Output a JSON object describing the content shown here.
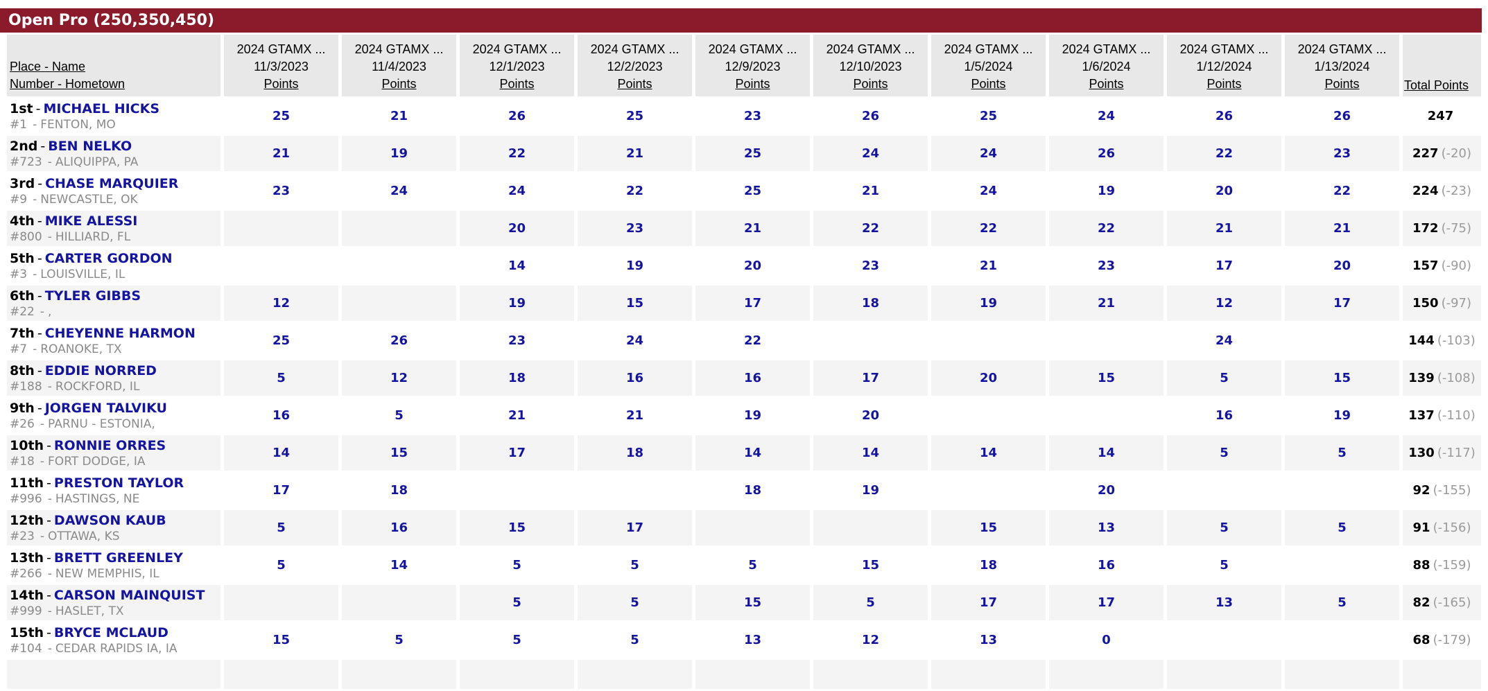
{
  "title_bar": {
    "label": "Open Pro (250,350,450)"
  },
  "colors": {
    "title_bar_bg": "#8b1b2b",
    "title_text": "#ffffff",
    "link_navy": "#1414a0",
    "muted_gray": "#8a8a8a",
    "deficit_gray": "#9a9a9a",
    "row_stripe": "#f4f4f4",
    "header_cell_bg": "#e8e8e8"
  },
  "table": {
    "row_header": {
      "line1": "Place - Name",
      "line2": "Number - Hometown"
    },
    "separator": "-",
    "points_label": "Points",
    "total_label": "Total Points",
    "event_columns": [
      {
        "series": "2024 GTAMX ...",
        "date": "11/3/2023"
      },
      {
        "series": "2024 GTAMX ...",
        "date": "11/4/2023"
      },
      {
        "series": "2024 GTAMX ...",
        "date": "12/1/2023"
      },
      {
        "series": "2024 GTAMX ...",
        "date": "12/2/2023"
      },
      {
        "series": "2024 GTAMX ...",
        "date": "12/9/2023"
      },
      {
        "series": "2024 GTAMX ...",
        "date": "12/10/2023"
      },
      {
        "series": "2024 GTAMX ...",
        "date": "1/5/2024"
      },
      {
        "series": "2024 GTAMX ...",
        "date": "1/6/2024"
      },
      {
        "series": "2024 GTAMX ...",
        "date": "1/12/2024"
      },
      {
        "series": "2024 GTAMX ...",
        "date": "1/13/2024"
      }
    ],
    "rows": [
      {
        "place": "1st",
        "name": "MICHAEL HICKS",
        "number": "#1",
        "hometown": "FENTON, MO",
        "points": [
          "25",
          "21",
          "26",
          "25",
          "23",
          "26",
          "25",
          "24",
          "26",
          "26"
        ],
        "total": "247",
        "deficit": ""
      },
      {
        "place": "2nd",
        "name": "BEN NELKO",
        "number": "#723",
        "hometown": "ALIQUIPPA, PA",
        "points": [
          "21",
          "19",
          "22",
          "21",
          "25",
          "24",
          "24",
          "26",
          "22",
          "23"
        ],
        "total": "227",
        "deficit": "(-20)"
      },
      {
        "place": "3rd",
        "name": "CHASE MARQUIER",
        "number": "#9",
        "hometown": "NEWCASTLE, OK",
        "points": [
          "23",
          "24",
          "24",
          "22",
          "25",
          "21",
          "24",
          "19",
          "20",
          "22"
        ],
        "total": "224",
        "deficit": "(-23)"
      },
      {
        "place": "4th",
        "name": "MIKE ALESSI",
        "number": "#800",
        "hometown": "HILLIARD, FL",
        "points": [
          "",
          "",
          "20",
          "23",
          "21",
          "22",
          "22",
          "22",
          "21",
          "21"
        ],
        "total": "172",
        "deficit": "(-75)"
      },
      {
        "place": "5th",
        "name": "CARTER GORDON",
        "number": "#3",
        "hometown": "LOUISVILLE, IL",
        "points": [
          "",
          "",
          "14",
          "19",
          "20",
          "23",
          "21",
          "23",
          "17",
          "20"
        ],
        "total": "157",
        "deficit": "(-90)"
      },
      {
        "place": "6th",
        "name": "TYLER GIBBS",
        "number": "#22",
        "hometown": ",",
        "points": [
          "12",
          "",
          "19",
          "15",
          "17",
          "18",
          "19",
          "21",
          "12",
          "17"
        ],
        "total": "150",
        "deficit": "(-97)"
      },
      {
        "place": "7th",
        "name": "CHEYENNE HARMON",
        "number": "#7",
        "hometown": "ROANOKE, TX",
        "points": [
          "25",
          "26",
          "23",
          "24",
          "22",
          "",
          "",
          "",
          "24",
          ""
        ],
        "total": "144",
        "deficit": "(-103)"
      },
      {
        "place": "8th",
        "name": "EDDIE NORRED",
        "number": "#188",
        "hometown": "ROCKFORD, IL",
        "points": [
          "5",
          "12",
          "18",
          "16",
          "16",
          "17",
          "20",
          "15",
          "5",
          "15"
        ],
        "total": "139",
        "deficit": "(-108)"
      },
      {
        "place": "9th",
        "name": "JORGEN TALVIKU",
        "number": "#26",
        "hometown": "PARNU - ESTONIA,",
        "points": [
          "16",
          "5",
          "21",
          "21",
          "19",
          "20",
          "",
          "",
          "16",
          "19"
        ],
        "total": "137",
        "deficit": "(-110)"
      },
      {
        "place": "10th",
        "name": "RONNIE ORRES",
        "number": "#18",
        "hometown": "FORT DODGE, IA",
        "points": [
          "14",
          "15",
          "17",
          "18",
          "14",
          "14",
          "14",
          "14",
          "5",
          "5"
        ],
        "total": "130",
        "deficit": "(-117)"
      },
      {
        "place": "11th",
        "name": "PRESTON TAYLOR",
        "number": "#996",
        "hometown": "HASTINGS, NE",
        "points": [
          "17",
          "18",
          "",
          "",
          "18",
          "19",
          "",
          "20",
          "",
          ""
        ],
        "total": "92",
        "deficit": "(-155)"
      },
      {
        "place": "12th",
        "name": "DAWSON KAUB",
        "number": "#23",
        "hometown": "OTTAWA, KS",
        "points": [
          "5",
          "16",
          "15",
          "17",
          "",
          "",
          "15",
          "13",
          "5",
          "5"
        ],
        "total": "91",
        "deficit": "(-156)"
      },
      {
        "place": "13th",
        "name": "BRETT GREENLEY",
        "number": "#266",
        "hometown": "NEW MEMPHIS, IL",
        "points": [
          "5",
          "14",
          "5",
          "5",
          "5",
          "15",
          "18",
          "16",
          "5",
          ""
        ],
        "total": "88",
        "deficit": "(-159)"
      },
      {
        "place": "14th",
        "name": "CARSON MAINQUIST",
        "number": "#999",
        "hometown": "HASLET, TX",
        "points": [
          "",
          "",
          "5",
          "5",
          "15",
          "5",
          "17",
          "17",
          "13",
          "5"
        ],
        "total": "82",
        "deficit": "(-165)"
      },
      {
        "place": "15th",
        "name": "BRYCE MCLAUD",
        "number": "#104",
        "hometown": "CEDAR RAPIDS IA, IA",
        "points": [
          "15",
          "5",
          "5",
          "5",
          "13",
          "12",
          "13",
          "0",
          "",
          ""
        ],
        "total": "68",
        "deficit": "(-179)"
      }
    ]
  }
}
